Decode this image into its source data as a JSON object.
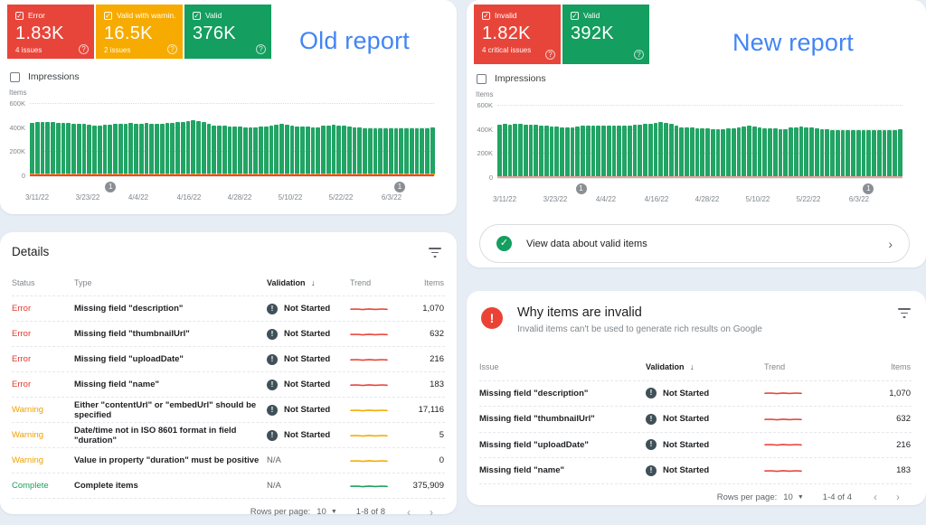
{
  "old_report": {
    "title": "Old report",
    "impressions_label": "Impressions",
    "stats": [
      {
        "label": "Error",
        "value": "1.83K",
        "sub": "4 issues",
        "color": "#e8453a"
      },
      {
        "label": "Valid with warnin..",
        "value": "16.5K",
        "sub": "2 issues",
        "color": "#f7ab00"
      },
      {
        "label": "Valid",
        "value": "376K",
        "sub": "",
        "color": "#149e5f"
      }
    ]
  },
  "new_report": {
    "title": "New report",
    "impressions_label": "Impressions",
    "stats": [
      {
        "label": "Invalid",
        "value": "1.82K",
        "sub": "4 critical issues",
        "color": "#e8453a"
      },
      {
        "label": "Valid",
        "value": "392K",
        "sub": "",
        "color": "#149e5f"
      }
    ],
    "view_valid_label": "View data about valid items"
  },
  "details": {
    "title": "Details",
    "columns": [
      "Status",
      "Type",
      "Validation",
      "Trend",
      "Items"
    ],
    "sorted_column": "Validation",
    "rows": [
      {
        "status": "Error",
        "type": "Missing field \"description\"",
        "validation": "Not Started",
        "trend_color": "#e8453a",
        "items": "1,070"
      },
      {
        "status": "Error",
        "type": "Missing field \"thumbnailUrl\"",
        "validation": "Not Started",
        "trend_color": "#e8453a",
        "items": "632"
      },
      {
        "status": "Error",
        "type": "Missing field \"uploadDate\"",
        "validation": "Not Started",
        "trend_color": "#e8453a",
        "items": "216"
      },
      {
        "status": "Error",
        "type": "Missing field \"name\"",
        "validation": "Not Started",
        "trend_color": "#e8453a",
        "items": "183"
      },
      {
        "status": "Warning",
        "type": "Either \"contentUrl\" or \"embedUrl\" should be specified",
        "validation": "Not Started",
        "trend_color": "#f7ab00",
        "items": "17,116"
      },
      {
        "status": "Warning",
        "type": "Date/time not in ISO 8601 format in field \"duration\"",
        "validation": "Not Started",
        "trend_color": "#f7ab00",
        "items": "5"
      },
      {
        "status": "Warning",
        "type": "Value in property \"duration\" must be positive",
        "validation": "N/A",
        "trend_color": "#f7ab00",
        "items": "0"
      },
      {
        "status": "Complete",
        "type": "Complete items",
        "validation": "N/A",
        "trend_color": "#1ea05f",
        "items": "375,909"
      }
    ],
    "pagination": {
      "rows_per_page_label": "Rows per page:",
      "page_size": "10",
      "range": "1-8 of 8"
    }
  },
  "why_invalid": {
    "title": "Why items are invalid",
    "subtitle": "Invalid items can't be used to generate rich results on Google",
    "columns": [
      "Issue",
      "Validation",
      "Trend",
      "Items"
    ],
    "sorted_column": "Validation",
    "rows": [
      {
        "issue": "Missing field \"description\"",
        "validation": "Not Started",
        "trend_color": "#e8453a",
        "items": "1,070"
      },
      {
        "issue": "Missing field \"thumbnailUrl\"",
        "validation": "Not Started",
        "trend_color": "#e8453a",
        "items": "632"
      },
      {
        "issue": "Missing field \"uploadDate\"",
        "validation": "Not Started",
        "trend_color": "#e8453a",
        "items": "216"
      },
      {
        "issue": "Missing field \"name\"",
        "validation": "Not Started",
        "trend_color": "#e8453a",
        "items": "183"
      }
    ],
    "pagination": {
      "rows_per_page_label": "Rows per page:",
      "page_size": "10",
      "range": "1-4 of 4"
    }
  },
  "chart_data": [
    {
      "type": "bar",
      "title": "Old report: items over time",
      "ylabel": "Items",
      "ylim_k": [
        0,
        600
      ],
      "yticks": [
        "600K",
        "400K",
        "200K",
        "0"
      ],
      "x_tick_labels": [
        "3/11/22",
        "3/23/22",
        "4/4/22",
        "4/16/22",
        "4/28/22",
        "5/10/22",
        "5/22/22",
        "6/3/22"
      ],
      "bar_color": "#21a464",
      "warning_band_k": 16.5,
      "warning_color": "#f7ab00",
      "error_line_k": 1.8,
      "error_color": "#e8453a",
      "markers": [
        {
          "pos": 0.2,
          "label": "1"
        },
        {
          "pos": 0.915,
          "label": "1"
        }
      ],
      "values_k": [
        438,
        441,
        439,
        442,
        440,
        438,
        436,
        433,
        430,
        427,
        424,
        420,
        416,
        414,
        417,
        421,
        425,
        428,
        430,
        432,
        431,
        430,
        432,
        431,
        430,
        431,
        433,
        436,
        440,
        445,
        451,
        455,
        452,
        446,
        428,
        416,
        412,
        410,
        408,
        406,
        403,
        401,
        399,
        401,
        403,
        406,
        411,
        419,
        425,
        420,
        413,
        408,
        405,
        403,
        400,
        399,
        412,
        416,
        419,
        415,
        410,
        406,
        401,
        397,
        393,
        391,
        393,
        391,
        389,
        391,
        392,
        390,
        389,
        391,
        392,
        390,
        389,
        396
      ]
    },
    {
      "type": "bar",
      "title": "New report: items over time",
      "ylabel": "Items",
      "ylim_k": [
        0,
        600
      ],
      "yticks": [
        "600K",
        "400K",
        "200K",
        "0"
      ],
      "x_tick_labels": [
        "3/11/22",
        "3/23/22",
        "4/4/22",
        "4/16/22",
        "4/28/22",
        "5/10/22",
        "5/22/22",
        "6/3/22"
      ],
      "bar_color": "#21a464",
      "warning_band_k": 0,
      "warning_color": "#f7ab00",
      "error_line_k": 1.8,
      "error_color": "#e8a09a",
      "markers": [
        {
          "pos": 0.207,
          "label": "1"
        },
        {
          "pos": 0.918,
          "label": "1"
        }
      ],
      "values_k": [
        437,
        440,
        438,
        441,
        439,
        437,
        435,
        432,
        429,
        426,
        423,
        419,
        415,
        413,
        416,
        420,
        424,
        427,
        429,
        431,
        430,
        429,
        431,
        430,
        429,
        430,
        432,
        435,
        439,
        444,
        450,
        454,
        451,
        445,
        427,
        415,
        411,
        409,
        407,
        405,
        402,
        400,
        398,
        400,
        402,
        405,
        410,
        418,
        424,
        419,
        412,
        407,
        404,
        402,
        399,
        398,
        411,
        415,
        418,
        414,
        409,
        405,
        400,
        396,
        392,
        390,
        392,
        390,
        388,
        390,
        391,
        389,
        388,
        390,
        391,
        389,
        388,
        395
      ]
    }
  ]
}
